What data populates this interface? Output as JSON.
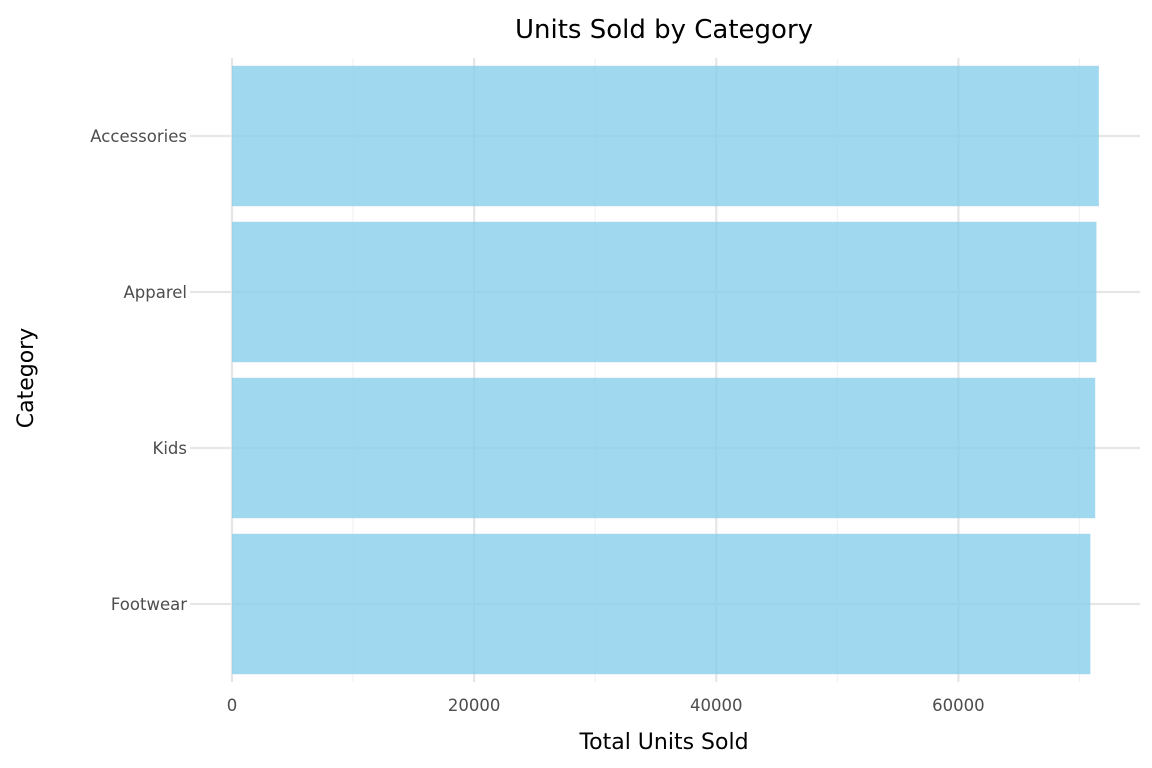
{
  "chart_data": {
    "type": "bar",
    "orientation": "horizontal",
    "title": "Units Sold by Category",
    "xlabel": "Total Units Sold",
    "ylabel": "Category",
    "categories": [
      "Accessories",
      "Apparel",
      "Kids",
      "Footwear"
    ],
    "values": [
      71600,
      71400,
      71300,
      70900
    ],
    "xlim": [
      0,
      75000
    ],
    "xticks": [
      "0",
      "20000",
      "40000",
      "60000"
    ],
    "bar_color": "#87CEEB",
    "grid": true,
    "legend": "none"
  }
}
